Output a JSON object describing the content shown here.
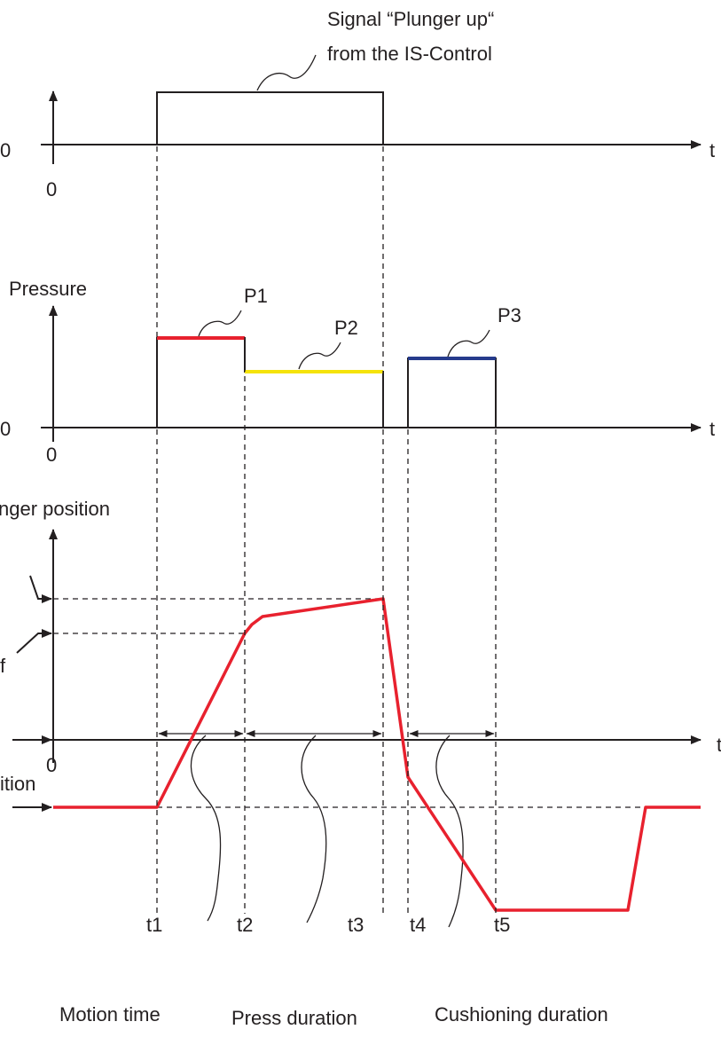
{
  "top_chart": {
    "annotation_line1": "Signal “Plunger up“",
    "annotation_line2": "from the IS-Control",
    "y_zero": "0",
    "x_zero": "0",
    "x_axis": "t"
  },
  "pressure_chart": {
    "y_label": "Pressure",
    "y_zero": "0",
    "x_zero": "0",
    "x_axis": "t",
    "levels": [
      {
        "label": "P1",
        "color": "#e8212e"
      },
      {
        "label": "P2",
        "color": "#f5e30a"
      },
      {
        "label": "P3",
        "color": "#263b8c"
      }
    ]
  },
  "position_chart": {
    "y_label": "nger position",
    "left_label_f": "f",
    "left_label_ition": "ition",
    "x_zero": "0",
    "x_axis": "t",
    "curve_color": "#e8212e",
    "time_ticks": [
      "t1",
      "t2",
      "t3",
      "t4",
      "t5"
    ]
  },
  "durations": {
    "motion": "Motion time",
    "press": "Press duration",
    "cushioning": "Cushioning duration"
  }
}
